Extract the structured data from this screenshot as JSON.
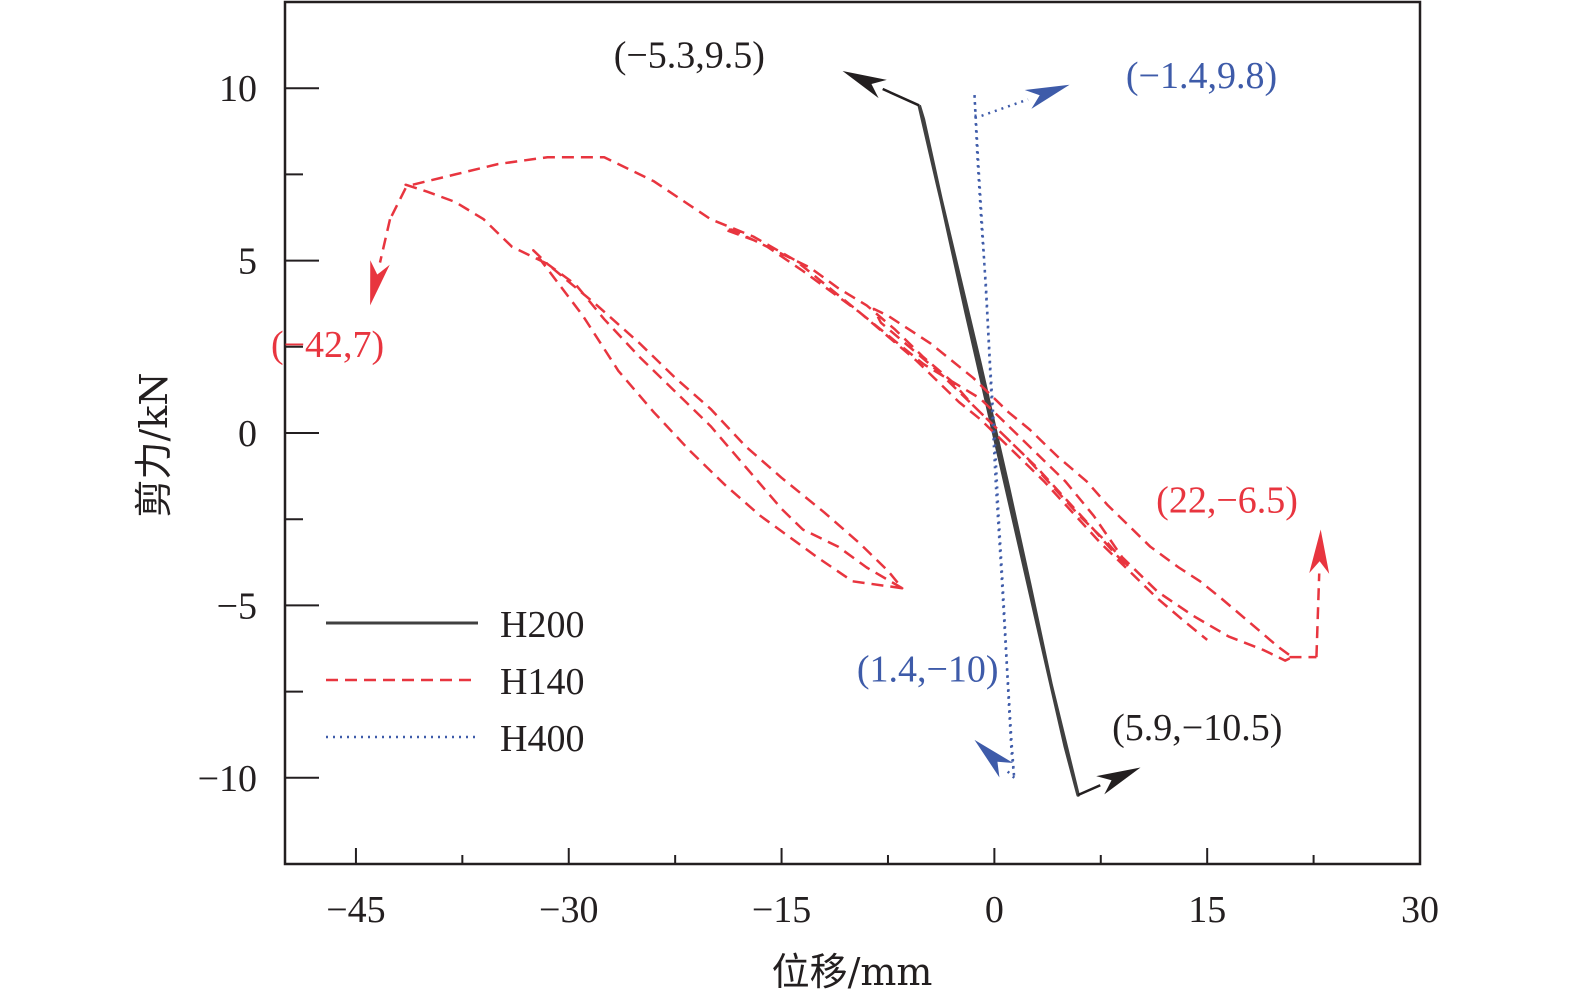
{
  "chart_data": {
    "type": "line",
    "xlabel": "位移/mm",
    "ylabel": "剪力/kN",
    "xlim": [
      -50,
      30
    ],
    "ylim": [
      -12.5,
      12.5
    ],
    "x_major_ticks": [
      -45,
      -30,
      -15,
      0,
      15,
      30
    ],
    "x_major_tick_labels": [
      "−45",
      "−30",
      "−15",
      "0",
      "15",
      "30"
    ],
    "x_minor_ticks": [
      -37.5,
      -22.5,
      -7.5,
      7.5,
      22.5
    ],
    "y_major_ticks": [
      -10,
      -5,
      0,
      5,
      10
    ],
    "y_major_tick_labels": [
      "−10",
      "−5",
      "0",
      "5",
      "10"
    ],
    "y_minor_ticks": [
      -7.5,
      -2.5,
      2.5,
      7.5
    ],
    "grid": false,
    "legend_position": "bottom-left",
    "series": [
      {
        "name": "H200",
        "color": "#404040",
        "style": "solid",
        "x": [
          -5.3,
          -4.0,
          -2.5,
          -1.0,
          0.0,
          1.0,
          2.5,
          4.0,
          5.9,
          5.0,
          3.5,
          2.0,
          0.5,
          -0.5,
          -2.0,
          -3.5,
          -5.0,
          -5.3
        ],
        "y": [
          9.5,
          7.2,
          4.6,
          2.0,
          0.2,
          -1.6,
          -4.4,
          -7.3,
          -10.5,
          -9.1,
          -6.4,
          -3.7,
          -1.0,
          0.8,
          3.5,
          6.3,
          9.1,
          9.5
        ]
      },
      {
        "name": "H140",
        "color": "#e8353f",
        "style": "dashed",
        "x": [
          -6.5,
          -10,
          -12.5,
          -14.5,
          -16.5,
          -19,
          -21.5,
          -24,
          -26.5,
          -29,
          -32.5,
          -31.5,
          -29.5,
          -27.5,
          -25,
          -22.5,
          -20,
          -17.5,
          -15,
          -13.5,
          -12.5,
          -11,
          -9,
          -6.5,
          -7.5,
          -9.5,
          -12,
          -15,
          -17.5,
          -20,
          -22.5,
          -25,
          -28,
          -31.5,
          -34,
          -36,
          -38,
          -40,
          -41.5,
          -41,
          -38,
          -35,
          -31.5,
          -27.5,
          -24,
          -20,
          -17,
          -14,
          -11,
          -8,
          -5,
          -3,
          -1,
          0,
          1.5,
          3,
          5,
          7,
          9,
          11.5,
          14,
          16.5,
          19,
          20.5,
          21,
          20,
          18,
          16,
          14.5,
          13,
          11,
          9.5,
          8,
          6.5,
          4.5,
          2.5,
          1,
          0,
          -1.5,
          -3,
          -4.5,
          -6,
          -7.5,
          -8.5,
          -8,
          -6,
          -4,
          -2,
          0,
          2,
          4,
          6,
          8,
          9.5,
          8.5,
          7,
          5,
          3,
          1,
          0,
          -1.5,
          -3,
          -5,
          -7,
          -9,
          -11,
          -13,
          -15,
          -17,
          -19,
          -18.5,
          -16,
          -13.5,
          -11.5,
          -9.5,
          -7.5,
          -5.5,
          -4,
          -2.5,
          -1,
          0,
          1.5,
          3.5,
          5.5,
          7.5,
          9.5,
          11.5,
          13.5,
          15
        ],
        "y": [
          -4.5,
          -4.3,
          -3.6,
          -3.0,
          -2.4,
          -1.5,
          -0.5,
          0.6,
          1.8,
          3.4,
          5.3,
          4.9,
          4.3,
          3.3,
          2.2,
          1.2,
          0.2,
          -1.0,
          -2.2,
          -2.8,
          -3.0,
          -3.3,
          -3.9,
          -4.5,
          -4.0,
          -3.2,
          -2.3,
          -1.3,
          -0.4,
          0.7,
          1.6,
          2.6,
          3.7,
          4.9,
          5.4,
          6.2,
          6.7,
          7.0,
          7.2,
          7.2,
          7.5,
          7.8,
          8.0,
          8.0,
          7.3,
          6.2,
          5.7,
          5.0,
          4.0,
          3.0,
          2.0,
          1.5,
          1.0,
          0.6,
          0.0,
          -0.6,
          -1.4,
          -2.4,
          -3.6,
          -4.6,
          -5.3,
          -5.9,
          -6.3,
          -6.6,
          -6.5,
          -6.2,
          -5.5,
          -4.8,
          -4.3,
          -3.9,
          -3.3,
          -2.7,
          -2.1,
          -1.4,
          -0.7,
          0.1,
          0.6,
          1.0,
          1.6,
          2.1,
          2.6,
          3.0,
          3.4,
          3.6,
          3.2,
          2.5,
          1.8,
          1.0,
          0.2,
          -0.6,
          -1.5,
          -2.4,
          -3.2,
          -3.9,
          -3.5,
          -2.8,
          -1.9,
          -1.0,
          -0.2,
          0.2,
          0.8,
          1.5,
          2.2,
          3.0,
          3.7,
          4.2,
          4.8,
          5.2,
          5.6,
          5.9,
          5.9,
          5.4,
          4.7,
          4.1,
          3.5,
          2.8,
          2.1,
          1.5,
          0.9,
          0.4,
          0.0,
          -0.6,
          -1.4,
          -2.3,
          -3.2,
          -4.0,
          -4.8,
          -5.5,
          -6.0
        ]
      },
      {
        "name": "H400",
        "color": "#3e5ba9",
        "style": "dotted",
        "x": [
          -1.4,
          -1.2,
          -0.9,
          -0.6,
          -0.3,
          0.0,
          0.3,
          0.6,
          0.9,
          1.2,
          1.4,
          1.2,
          0.9,
          0.5,
          0.1,
          -0.2,
          -0.5,
          -0.8,
          -1.1,
          -1.4
        ],
        "y": [
          9.8,
          8.0,
          6.0,
          4.3,
          2.0,
          0.0,
          -2.4,
          -4.5,
          -6.8,
          -8.9,
          -10.0,
          -9.2,
          -6.9,
          -4.1,
          -1.5,
          1.0,
          3.4,
          5.6,
          7.6,
          9.8
        ]
      }
    ],
    "annotations": [
      {
        "text": "(−5.3,9.5)",
        "color": "#231f20",
        "x": -5.3,
        "y": 9.5
      },
      {
        "text": "(−1.4,9.8)",
        "color": "#3e5ba9",
        "x": -1.4,
        "y": 9.8
      },
      {
        "text": "(−42,7)",
        "color": "#e8353f",
        "x": -42,
        "y": 7
      },
      {
        "text": "(22,−6.5)",
        "color": "#e8353f",
        "x": 22,
        "y": -6.5
      },
      {
        "text": "(1.4,−10)",
        "color": "#3e5ba9",
        "x": 1.4,
        "y": -10
      },
      {
        "text": "(5.9,−10.5)",
        "color": "#231f20",
        "x": 5.9,
        "y": -10.5
      }
    ]
  }
}
